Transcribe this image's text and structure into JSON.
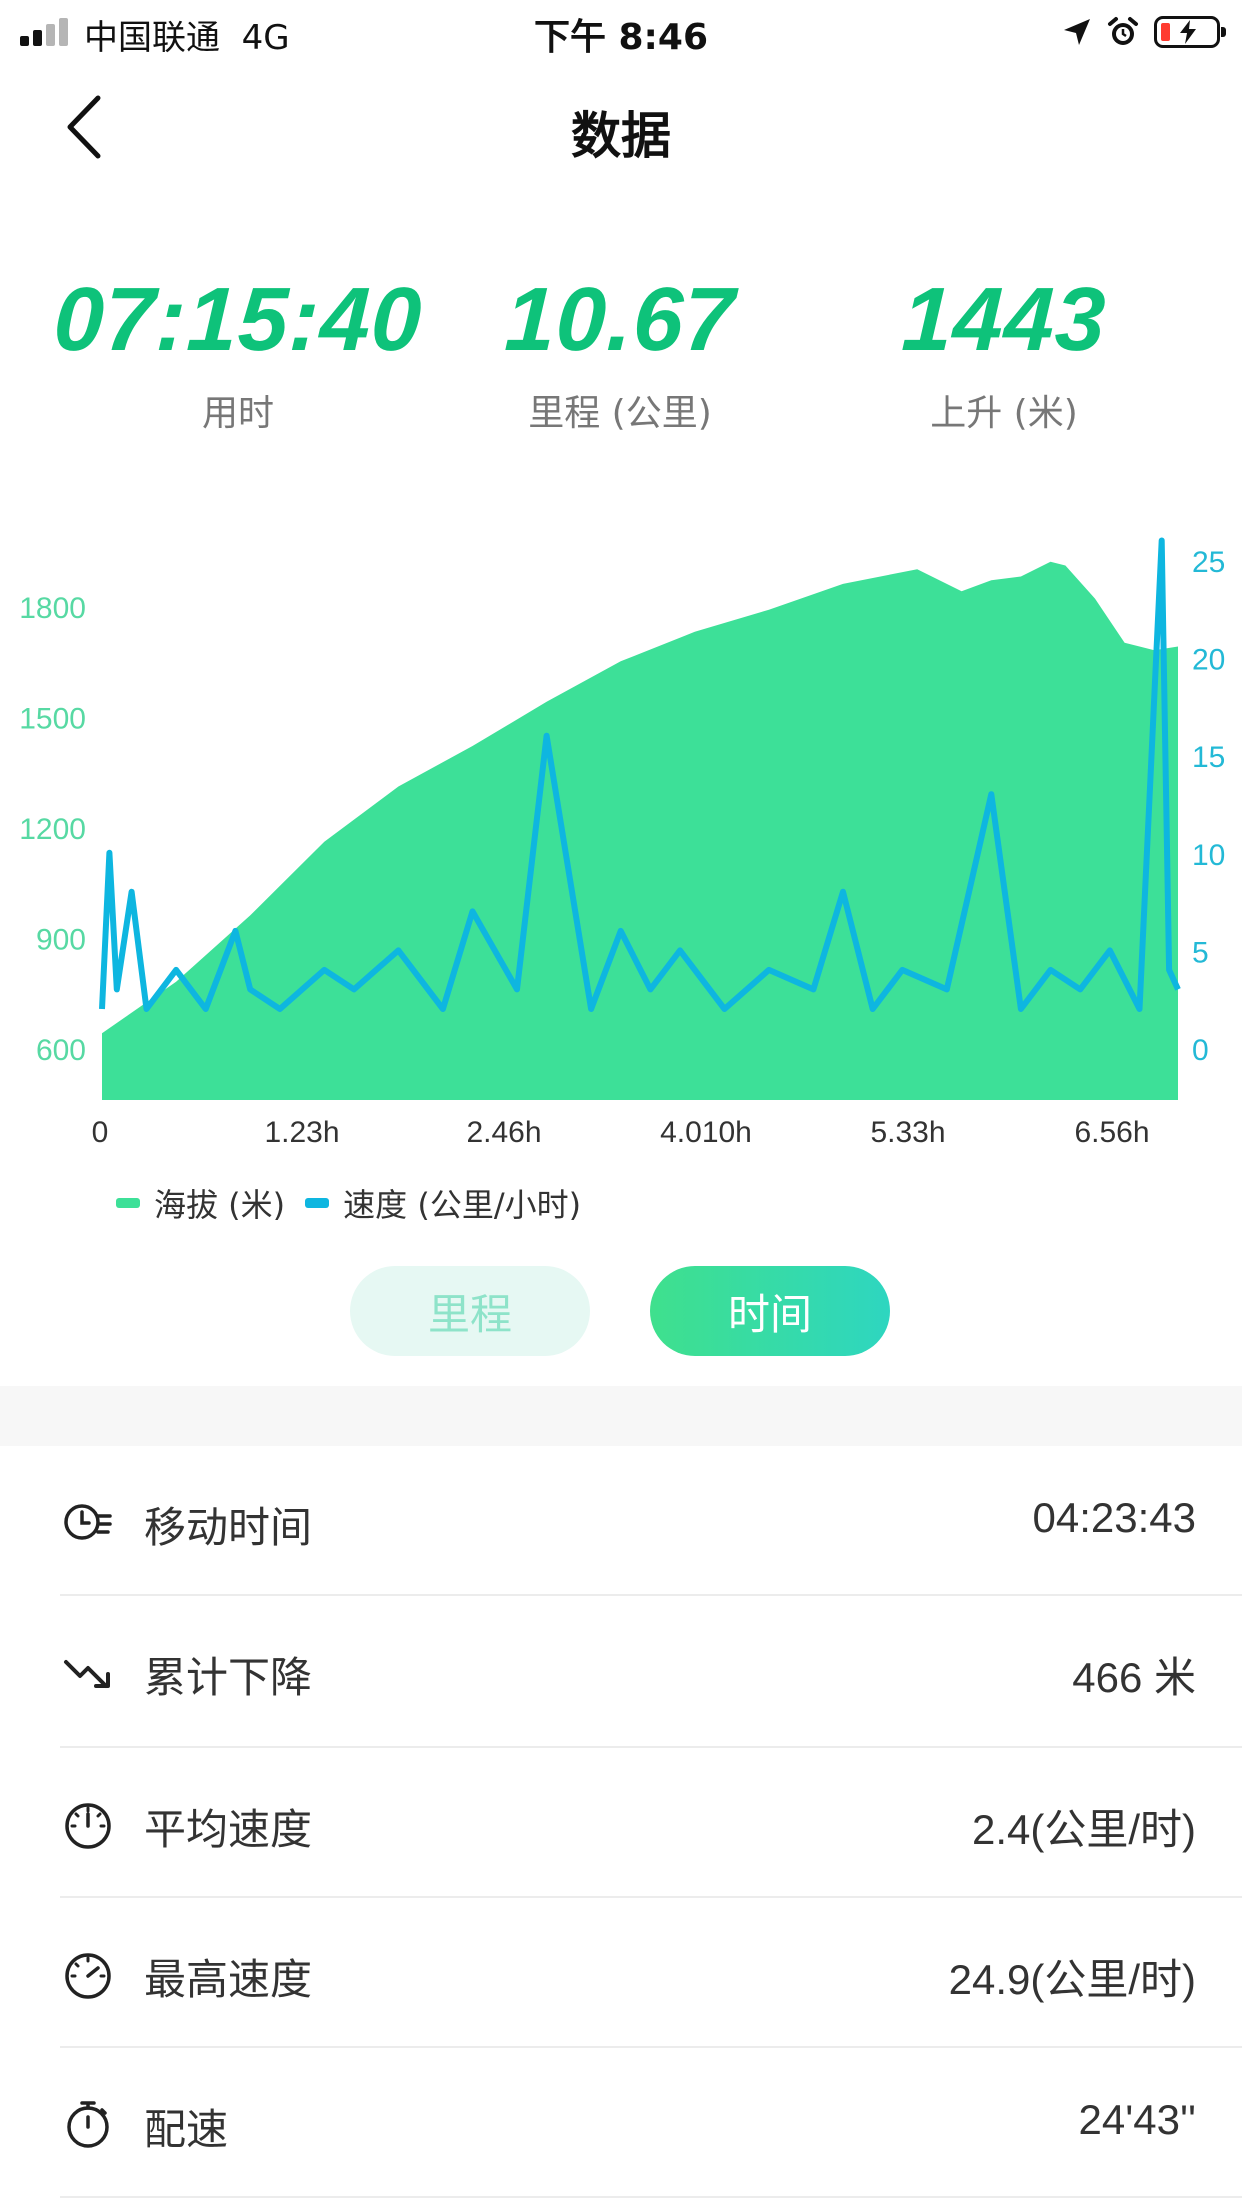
{
  "status_bar": {
    "carrier": "中国联通",
    "network": "4G",
    "time": "下午 8:46"
  },
  "header": {
    "title": "数据"
  },
  "summary": [
    {
      "value": "07:15:40",
      "label": "用时"
    },
    {
      "value": "10.67",
      "label": "里程 (公里)"
    },
    {
      "value": "1443",
      "label": "上升 (米)"
    }
  ],
  "colors": {
    "brand_green": "#0ec27a",
    "elevation_fill": "#3de098",
    "speed_line": "#0eb6e0"
  },
  "chart_data": {
    "type": "area",
    "x_ticks": [
      "0",
      "1.23h",
      "2.46h",
      "4.010h",
      "5.33h",
      "6.56h"
    ],
    "x_range_hours": [
      0,
      7.26
    ],
    "y_left": {
      "ticks": [
        "600",
        "900",
        "1200",
        "1500",
        "1800"
      ],
      "range": [
        600,
        1800
      ]
    },
    "y_right": {
      "ticks": [
        "0",
        "5",
        "10",
        "15",
        "20",
        "25"
      ],
      "range": [
        0,
        25
      ]
    },
    "series": [
      {
        "name": "海拔 (米)",
        "axis": "left",
        "style": "area",
        "x": [
          0,
          0.5,
          1.0,
          1.5,
          2.0,
          2.5,
          3.0,
          3.5,
          4.0,
          4.5,
          5.0,
          5.5,
          5.8,
          6.0,
          6.2,
          6.4,
          6.5,
          6.7,
          6.9,
          7.1,
          7.26
        ],
        "values": [
          640,
          780,
          960,
          1160,
          1310,
          1420,
          1540,
          1650,
          1730,
          1790,
          1860,
          1900,
          1840,
          1870,
          1880,
          1920,
          1910,
          1820,
          1700,
          1680,
          1690
        ]
      },
      {
        "name": "速度 (公里/小时)",
        "axis": "right",
        "style": "line",
        "x": [
          0,
          0.05,
          0.1,
          0.2,
          0.3,
          0.5,
          0.7,
          0.9,
          1.0,
          1.2,
          1.5,
          1.7,
          2.0,
          2.3,
          2.5,
          2.8,
          3.0,
          3.3,
          3.5,
          3.7,
          3.9,
          4.2,
          4.5,
          4.8,
          5.0,
          5.2,
          5.4,
          5.7,
          6.0,
          6.2,
          6.4,
          6.6,
          6.8,
          7.0,
          7.15,
          7.2,
          7.26
        ],
        "values": [
          2,
          10,
          3,
          8,
          2,
          4,
          2,
          6,
          3,
          2,
          4,
          3,
          5,
          2,
          7,
          3,
          16,
          2,
          6,
          3,
          5,
          2,
          4,
          3,
          8,
          2,
          4,
          3,
          13,
          2,
          4,
          3,
          5,
          2,
          26,
          4,
          3
        ]
      }
    ]
  },
  "toggle": {
    "mileage_label": "里程",
    "time_label": "时间",
    "active": "时间"
  },
  "details": [
    {
      "icon": "clock-motion-icon",
      "label": "移动时间",
      "value": "04:23:43"
    },
    {
      "icon": "trend-down-icon",
      "label": "累计下降",
      "value": "466 米"
    },
    {
      "icon": "gauge-low-icon",
      "label": "平均速度",
      "value": "2.4(公里/时)"
    },
    {
      "icon": "gauge-high-icon",
      "label": "最高速度",
      "value": "24.9(公里/时)"
    },
    {
      "icon": "stopwatch-icon",
      "label": "配速",
      "value": "24'43''"
    }
  ]
}
